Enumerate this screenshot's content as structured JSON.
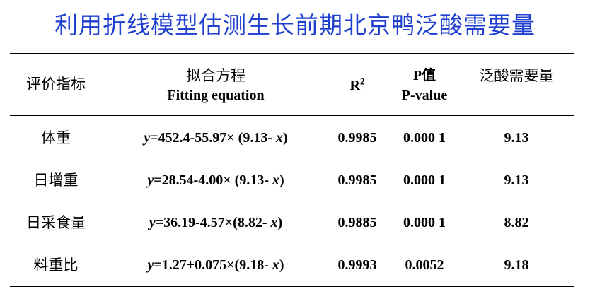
{
  "title": "利用折线模型估测生长前期北京鸭泛酸需要量",
  "header": {
    "indicator": "评价指标",
    "equation_cn": "拟合方程",
    "equation_en": "Fitting equation",
    "r2_base": "R",
    "r2_sup": "2",
    "p_cn": "P值",
    "p_en": "P-value",
    "requirement": "泛酸需要量"
  },
  "rows": [
    {
      "indicator": "体重",
      "eq_var": "y",
      "eq_mid": "=452.4-55.97× (9.13- ",
      "eq_x": "x",
      "eq_end": ")",
      "r2": "0.9985",
      "p": "0.000 1",
      "requirement": "9.13"
    },
    {
      "indicator": "日增重",
      "eq_var": "y",
      "eq_mid": "=28.54-4.00× (9.13- ",
      "eq_x": "x",
      "eq_end": ")",
      "r2": "0.9985",
      "p": "0.000 1",
      "requirement": "9.13"
    },
    {
      "indicator": "日采食量",
      "eq_var": "y",
      "eq_mid": "=36.19-4.57×(8.82- ",
      "eq_x": "x",
      "eq_end": ")",
      "r2": "0.9885",
      "p": "0.000 1",
      "requirement": "8.82"
    },
    {
      "indicator": "料重比",
      "eq_var": "y",
      "eq_mid": "=1.27+0.075×(9.18- ",
      "eq_x": "x",
      "eq_end": ")",
      "r2": "0.9993",
      "p": "0.0052",
      "requirement": "9.18"
    }
  ]
}
